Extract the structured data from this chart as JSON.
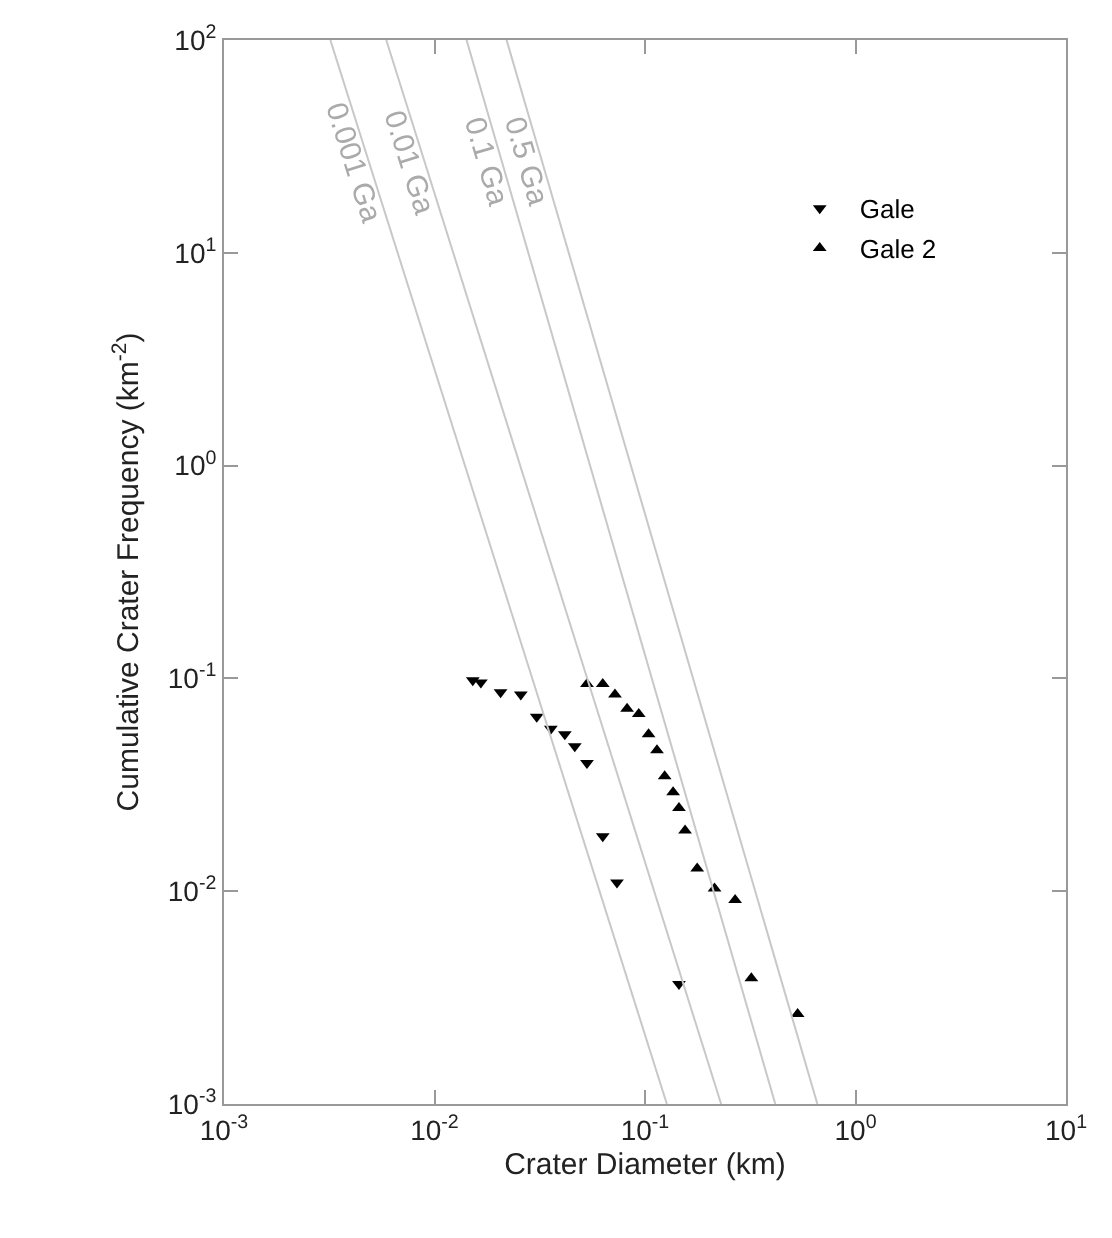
{
  "chart_data": {
    "type": "scatter",
    "xlabel": "Crater Diameter (km)",
    "ylabel": "Cumulative Crater Frequency (km$^{-2}$)",
    "log": "xy",
    "xlim": [
      0.001,
      10
    ],
    "ylim": [
      0.001,
      100
    ],
    "xticks": [
      {
        "value": 0.001,
        "label": "10$^{-3}$"
      },
      {
        "value": 0.01,
        "label": "10$^{-2}$"
      },
      {
        "value": 0.1,
        "label": "10$^{-1}$"
      },
      {
        "value": 1,
        "label": "10$^{0}$"
      },
      {
        "value": 10,
        "label": "10$^{1}$"
      }
    ],
    "yticks": [
      {
        "value": 0.001,
        "label": "10$^{-3}$"
      },
      {
        "value": 0.01,
        "label": "10$^{-2}$"
      },
      {
        "value": 0.1,
        "label": "10$^{-1}$"
      },
      {
        "value": 1,
        "label": "10$^{0}$"
      },
      {
        "value": 10,
        "label": "10$^{1}$"
      },
      {
        "value": 100,
        "label": "10$^{2}$"
      }
    ],
    "grid": false,
    "legend": "top right",
    "series": [
      {
        "name": "Gale",
        "marker": "triangle-down",
        "color": "#000000",
        "x": [
          0.0152,
          0.0166,
          0.0206,
          0.0257,
          0.0306,
          0.0357,
          0.0416,
          0.0464,
          0.053,
          0.063,
          0.0736,
          0.145
        ],
        "values": [
          0.098,
          0.0957,
          0.086,
          0.084,
          0.066,
          0.058,
          0.0546,
          0.048,
          0.04,
          0.0181,
          0.011,
          0.00366
        ]
      },
      {
        "name": "Gale 2",
        "marker": "triangle",
        "color": "#000000",
        "x": [
          0.053,
          0.063,
          0.072,
          0.0822,
          0.0934,
          0.104,
          0.114,
          0.124,
          0.136,
          0.145,
          0.155,
          0.177,
          0.214,
          0.268,
          0.32,
          0.531
        ],
        "values": [
          0.094,
          0.094,
          0.084,
          0.072,
          0.068,
          0.0546,
          0.046,
          0.0347,
          0.0292,
          0.0246,
          0.0193,
          0.0128,
          0.0103,
          0.0091,
          0.0039,
          0.00265
        ]
      },
      {
        "name": "0.001 Ga",
        "type": "line",
        "color": "#c8c8c8",
        "x": [
          0.0032,
          0.127
        ],
        "values": [
          100,
          0.001
        ]
      },
      {
        "name": "0.01 Ga",
        "type": "line",
        "color": "#c8c8c8",
        "x": [
          0.0059,
          0.23
        ],
        "values": [
          100,
          0.001
        ]
      },
      {
        "name": "0.1 Ga",
        "type": "line",
        "color": "#c8c8c8",
        "x": [
          0.0142,
          0.416
        ],
        "values": [
          100,
          0.001
        ]
      },
      {
        "name": "0.5 Ga",
        "type": "line",
        "color": "#c8c8c8",
        "x": [
          0.022,
          0.659
        ],
        "values": [
          100,
          0.001
        ]
      }
    ]
  }
}
